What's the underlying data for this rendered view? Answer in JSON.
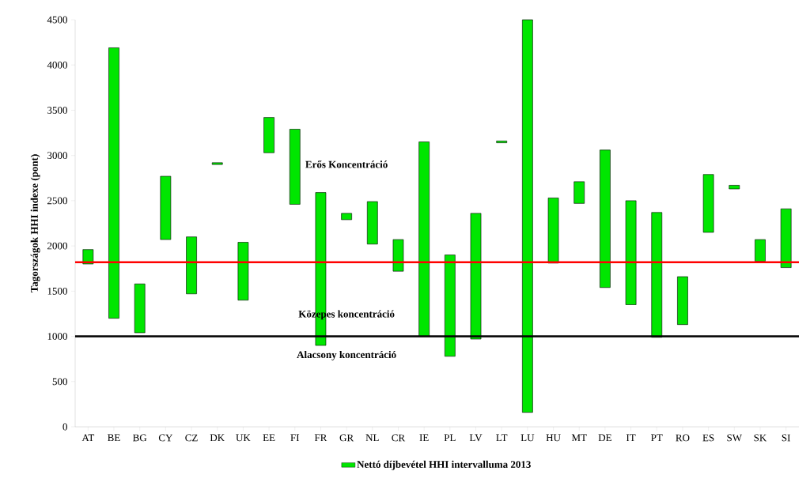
{
  "chart_data": {
    "type": "bar",
    "ylabel": "Tagországok HHI  indexe  (pont)",
    "categories": [
      "AT",
      "BE",
      "BG",
      "CY",
      "CZ",
      "DK",
      "UK",
      "EE",
      "FI",
      "FR",
      "GR",
      "NL",
      "CR",
      "IE",
      "PL",
      "LV",
      "LT",
      "LU",
      "HU",
      "MT",
      "DE",
      "IT",
      "PT",
      "RO",
      "ES",
      "SW",
      "SK",
      "SI"
    ],
    "series": [
      {
        "name": "Nettó díjbevétel HHI intervalluma 2013",
        "color": "#00e600",
        "base": [
          1800,
          1200,
          1040,
          2070,
          1470,
          2900,
          1400,
          3030,
          2460,
          900,
          2290,
          2020,
          1720,
          1000,
          780,
          970,
          3140,
          160,
          1810,
          2470,
          1540,
          1350,
          990,
          1130,
          2150,
          2630,
          1830,
          1760
        ],
        "values": [
          160,
          2990,
          540,
          700,
          630,
          20,
          640,
          390,
          830,
          1690,
          70,
          470,
          350,
          2150,
          1120,
          1390,
          20,
          4340,
          720,
          240,
          1520,
          1150,
          1380,
          530,
          640,
          40,
          240,
          650
        ]
      }
    ],
    "ylim": [
      0,
      4500
    ],
    "yticks": [
      0,
      500,
      1000,
      1500,
      2000,
      2500,
      3000,
      3500,
      4000,
      4500
    ],
    "ref_lines": [
      {
        "axis": "y",
        "value": 1820,
        "color": "#ff0000"
      },
      {
        "axis": "y",
        "value": 1000,
        "color": "#000000"
      }
    ],
    "annotations": [
      "Erős Koncentráció",
      "Közepes koncentráció",
      "Alacsony koncentráció"
    ],
    "legend": "bottom"
  }
}
